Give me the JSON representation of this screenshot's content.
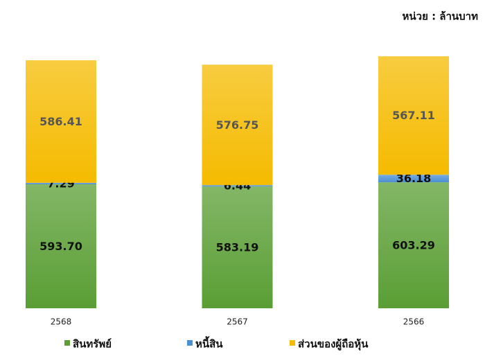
{
  "chart_data": {
    "type": "stacked_bar",
    "annotation": "หน่วย : ล้านบาท",
    "categories": [
      "2568",
      "2567",
      "2566"
    ],
    "series": [
      {
        "name": "สินทรัพย์",
        "color": "#5a9e34",
        "values": [
          593.7,
          583.19,
          603.29
        ],
        "value_labels": [
          "593.70",
          "583.19",
          "603.29"
        ]
      },
      {
        "name": "หนี้สิน",
        "color": "#4a8fd4",
        "values": [
          7.29,
          6.44,
          36.18
        ]
      },
      {
        "name": "ส่วนของผู้ถือหุ้น",
        "color": "#f5bb00",
        "values": [
          586.41,
          576.75,
          567.11
        ]
      }
    ]
  }
}
